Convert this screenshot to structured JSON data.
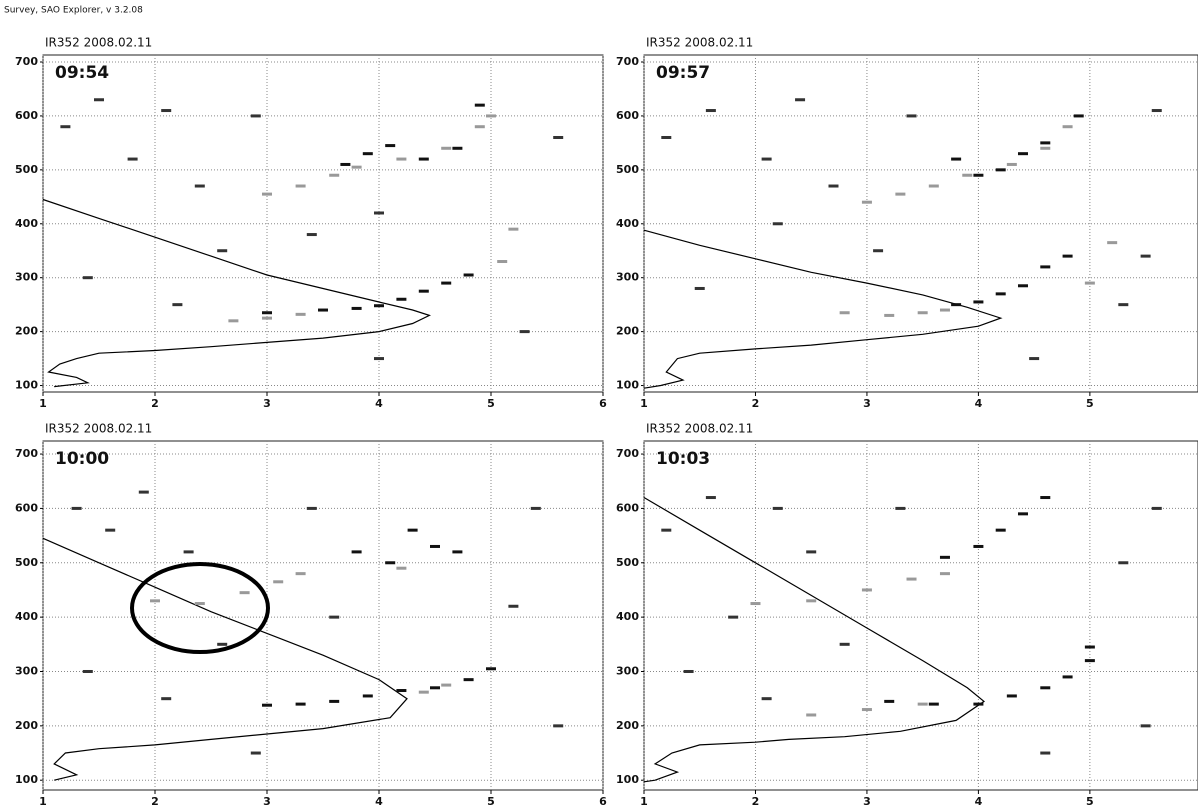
{
  "header": "Survey, SAO Explorer, v 3.2.08",
  "chart_data": [
    {
      "type": "scatter",
      "title": "IR352 2008.02.11",
      "time": "09:54",
      "grid": true,
      "xlim": [
        1,
        6
      ],
      "ylim": [
        88,
        713
      ],
      "xticks": [
        1,
        2,
        3,
        4,
        5,
        6
      ],
      "yticks": [
        100,
        200,
        300,
        400,
        500,
        600,
        700
      ],
      "series": [
        {
          "marker": "line",
          "color": "#000",
          "x": [
            1,
            1.5,
            2,
            2.5,
            3,
            3.5,
            4,
            4.3,
            4.45,
            4.3,
            4,
            3.5,
            3,
            2.5,
            2,
            1.5,
            1.3,
            1.15,
            1.05,
            1.3,
            1.4,
            1.1
          ],
          "values": [
            445,
            410,
            375,
            340,
            305,
            280,
            255,
            240,
            230,
            215,
            200,
            188,
            180,
            172,
            165,
            160,
            150,
            140,
            125,
            115,
            105,
            98
          ]
        },
        {
          "marker": "dash",
          "color": "#111",
          "x": [
            3,
            3.5,
            3.8,
            4,
            4.2,
            4.4,
            4.6,
            4.8,
            3.7,
            3.9,
            4.1,
            4.4,
            4.7,
            4.9
          ],
          "values": [
            235,
            240,
            243,
            248,
            260,
            275,
            290,
            305,
            510,
            530,
            545,
            520,
            540,
            620
          ]
        },
        {
          "marker": "dash",
          "color": "#999",
          "x": [
            2.7,
            3,
            3.3,
            3,
            3.3,
            3.6,
            3.8,
            4.2,
            4.6,
            4.9,
            5,
            5.2,
            5.1
          ],
          "values": [
            220,
            225,
            232,
            455,
            470,
            490,
            505,
            520,
            540,
            580,
            600,
            390,
            330
          ]
        },
        {
          "marker": "dash",
          "color": "#333",
          "x": [
            1.2,
            1.5,
            1.8,
            2.1,
            2.4,
            2.6,
            2.9,
            3.4,
            4.0,
            4.0,
            5.3,
            5.6,
            1.4,
            2.2
          ],
          "values": [
            580,
            630,
            520,
            610,
            470,
            350,
            600,
            380,
            150,
            420,
            200,
            560,
            300,
            250
          ]
        }
      ]
    },
    {
      "type": "scatter",
      "title": "IR352 2008.02.11",
      "time": "09:57",
      "grid": true,
      "xlim": [
        1,
        5.97
      ],
      "ylim": [
        88,
        713
      ],
      "xticks": [
        1,
        2,
        3,
        4,
        5
      ],
      "yticks": [
        100,
        200,
        300,
        400,
        500,
        600,
        700
      ],
      "series": [
        {
          "marker": "line",
          "color": "#000",
          "x": [
            1,
            1.5,
            2,
            2.5,
            3,
            3.5,
            3.9,
            4.2,
            4,
            3.5,
            3,
            2.5,
            2,
            1.5,
            1.3,
            1.2,
            1.35,
            1.15,
            1
          ],
          "values": [
            388,
            360,
            335,
            310,
            290,
            268,
            245,
            225,
            210,
            195,
            185,
            175,
            168,
            160,
            150,
            125,
            110,
            100,
            95
          ]
        },
        {
          "marker": "dash",
          "color": "#111",
          "x": [
            3.8,
            4,
            4.2,
            4.4,
            4.6,
            4.8,
            3.8,
            4,
            4.2,
            4.4,
            4.6,
            4.9
          ],
          "values": [
            250,
            255,
            270,
            285,
            320,
            340,
            520,
            490,
            500,
            530,
            550,
            600
          ]
        },
        {
          "marker": "dash",
          "color": "#999",
          "x": [
            2.8,
            3.2,
            3.5,
            3.7,
            5,
            5.2,
            3,
            3.3,
            3.6,
            3.9,
            4.3,
            4.6,
            4.8
          ],
          "values": [
            235,
            230,
            235,
            240,
            290,
            365,
            440,
            455,
            470,
            490,
            510,
            540,
            580
          ]
        },
        {
          "marker": "dash",
          "color": "#333",
          "x": [
            1.2,
            1.6,
            2.1,
            2.4,
            2.7,
            3.1,
            3.4,
            5.3,
            5.6,
            1.5,
            2.2,
            4.5,
            5.5
          ],
          "values": [
            560,
            610,
            520,
            630,
            470,
            350,
            600,
            250,
            610,
            280,
            400,
            150,
            340
          ]
        }
      ]
    },
    {
      "type": "scatter",
      "title": "IR352 2008.02.11",
      "time": "10:00",
      "grid": true,
      "xlim": [
        1,
        6
      ],
      "ylim": [
        82,
        724
      ],
      "xticks": [
        1,
        2,
        3,
        4,
        5,
        6
      ],
      "yticks": [
        100,
        200,
        300,
        400,
        500,
        600,
        700
      ],
      "series": [
        {
          "marker": "line",
          "color": "#000",
          "x": [
            1,
            1.5,
            2,
            2.5,
            3,
            3.5,
            4,
            4.25,
            4.1,
            3.5,
            3,
            2.5,
            2,
            1.5,
            1.2,
            1.1,
            1.3,
            1.1
          ],
          "values": [
            545,
            500,
            455,
            410,
            370,
            330,
            285,
            250,
            215,
            195,
            185,
            175,
            165,
            158,
            150,
            130,
            110,
            100
          ]
        },
        {
          "marker": "dash",
          "color": "#111",
          "x": [
            3,
            3.3,
            3.6,
            3.9,
            4.2,
            4.5,
            4.8,
            5,
            3.8,
            4.1,
            4.3,
            4.5,
            4.7
          ],
          "values": [
            238,
            240,
            245,
            255,
            265,
            270,
            285,
            305,
            520,
            500,
            560,
            530,
            520
          ]
        },
        {
          "marker": "dash",
          "color": "#999",
          "x": [
            2,
            2.4,
            2.8,
            3.1,
            3.3,
            4.4,
            4.6,
            4.2
          ],
          "values": [
            430,
            425,
            445,
            465,
            480,
            262,
            275,
            490
          ]
        },
        {
          "marker": "dash",
          "color": "#333",
          "x": [
            1.3,
            1.6,
            1.9,
            2.3,
            2.6,
            3.4,
            3.6,
            5.4,
            5.6,
            1.4,
            2.1,
            2.9,
            5.2
          ],
          "values": [
            600,
            560,
            630,
            520,
            350,
            600,
            400,
            600,
            200,
            300,
            250,
            150,
            420
          ]
        }
      ]
    },
    {
      "type": "scatter",
      "title": "IR352 2008.02.11",
      "time": "10:03",
      "grid": true,
      "xlim": [
        1,
        5.97
      ],
      "ylim": [
        82,
        724
      ],
      "xticks": [
        1,
        2,
        3,
        4,
        5
      ],
      "yticks": [
        100,
        200,
        300,
        400,
        500,
        600,
        700
      ],
      "series": [
        {
          "marker": "line",
          "color": "#000",
          "x": [
            1,
            1.5,
            2,
            2.5,
            3,
            3.5,
            3.9,
            4.05,
            3.8,
            3.3,
            2.8,
            2.3,
            2,
            1.5,
            1.25,
            1.1,
            1.3,
            1.1,
            1
          ],
          "values": [
            620,
            560,
            500,
            440,
            380,
            320,
            270,
            245,
            210,
            190,
            180,
            175,
            170,
            165,
            150,
            130,
            115,
            100,
            97
          ]
        },
        {
          "marker": "dash",
          "color": "#111",
          "x": [
            3.2,
            3.6,
            4,
            4.3,
            4.6,
            4.8,
            5,
            5,
            3.7,
            4,
            4.2,
            4.4,
            4.6
          ],
          "values": [
            245,
            240,
            240,
            255,
            270,
            290,
            320,
            345,
            510,
            530,
            560,
            590,
            620
          ]
        },
        {
          "marker": "dash",
          "color": "#999",
          "x": [
            2,
            2.5,
            3,
            3.4,
            3.7,
            2.5,
            3,
            3.5
          ],
          "values": [
            425,
            430,
            450,
            470,
            480,
            220,
            230,
            240
          ]
        },
        {
          "marker": "dash",
          "color": "#333",
          "x": [
            1.2,
            1.6,
            2.2,
            2.5,
            2.8,
            3.3,
            5.3,
            5.6,
            1.4,
            2.1,
            4.6,
            5.5,
            1.8
          ],
          "values": [
            560,
            620,
            600,
            520,
            350,
            600,
            500,
            600,
            300,
            250,
            150,
            200,
            400
          ]
        }
      ]
    }
  ]
}
